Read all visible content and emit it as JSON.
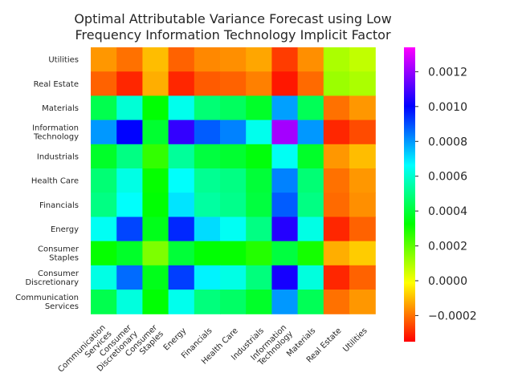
{
  "chart_data": {
    "type": "heatmap",
    "title": "Optimal Attributable Variance Forecast using Low Frequency Information Technology Implicit Factor",
    "title_lines": [
      "Optimal Attributable Variance Forecast using Low",
      "Frequency Information Technology Implicit Factor"
    ],
    "row_labels": [
      "Utilities",
      "Real Estate",
      "Materials",
      "Information Technology",
      "Industrials",
      "Health Care",
      "Financials",
      "Energy",
      "Consumer Staples",
      "Consumer Discretionary",
      "Communication Services"
    ],
    "row_label_lines": [
      [
        "Utilities"
      ],
      [
        "Real Estate"
      ],
      [
        "Materials"
      ],
      [
        "Information",
        "Technology"
      ],
      [
        "Industrials"
      ],
      [
        "Health Care"
      ],
      [
        "Financials"
      ],
      [
        "Energy"
      ],
      [
        "Consumer",
        "Staples"
      ],
      [
        "Consumer",
        "Discretionary"
      ],
      [
        "Communication",
        "Services"
      ]
    ],
    "col_labels": [
      "Communication Services",
      "Consumer Discretionary",
      "Consumer Staples",
      "Energy",
      "Financials",
      "Health Care",
      "Industrials",
      "Information Technology",
      "Materials",
      "Real Estate",
      "Utilities"
    ],
    "col_label_lines": [
      [
        "Communication",
        "Services"
      ],
      [
        "Consumer",
        "Discretionary"
      ],
      [
        "Consumer",
        "Staples"
      ],
      [
        "Energy"
      ],
      [
        "Financials"
      ],
      [
        "Health Care"
      ],
      [
        "Industrials"
      ],
      [
        "Information",
        "Technology"
      ],
      [
        "Materials"
      ],
      [
        "Real Estate"
      ],
      [
        "Utilities"
      ]
    ],
    "values": [
      [
        -0.00015,
        -0.0002,
        -0.0001,
        -0.00022,
        -0.00017,
        -0.00016,
        -0.00013,
        -0.00027,
        -0.00016,
        0.0001,
        7e-05
      ],
      [
        -0.00022,
        -0.0003,
        -0.00012,
        -0.0003,
        -0.00023,
        -0.00022,
        -0.00018,
        -0.00032,
        -0.00021,
        0.00012,
        0.0001
      ],
      [
        0.00043,
        0.00061,
        0.00033,
        0.00064,
        0.00048,
        0.00045,
        0.00038,
        0.00079,
        0.00044,
        -0.0002,
        -0.00015
      ],
      [
        0.0008,
        0.001,
        0.00039,
        0.00107,
        0.00088,
        0.00083,
        0.00064,
        0.00122,
        0.0008,
        -0.0003,
        -0.00025
      ],
      [
        0.00038,
        0.0005,
        0.00026,
        0.00053,
        0.00041,
        0.00039,
        0.00034,
        0.00065,
        0.00038,
        -0.00015,
        -0.0001
      ],
      [
        0.00048,
        0.00063,
        0.00032,
        0.00066,
        0.00052,
        0.0005,
        0.0004,
        0.00083,
        0.00048,
        -0.0002,
        -0.00015
      ],
      [
        0.0005,
        0.00066,
        0.00033,
        0.0007,
        0.00054,
        0.00051,
        0.00041,
        0.00088,
        0.0005,
        -0.00021,
        -0.00016
      ],
      [
        0.00065,
        0.00091,
        0.00036,
        0.00095,
        0.00071,
        0.00065,
        0.0005,
        0.00105,
        0.00063,
        -0.0003,
        -0.00022
      ],
      [
        0.00032,
        0.00038,
        0.00016,
        0.0004,
        0.00033,
        0.00032,
        0.00028,
        0.00041,
        0.0003,
        -0.00012,
        -8e-05
      ],
      [
        0.00063,
        0.00086,
        0.00036,
        0.00092,
        0.00068,
        0.00063,
        0.00049,
        0.00103,
        0.00062,
        -0.0003,
        -0.00022
      ],
      [
        0.00043,
        0.00062,
        0.00033,
        0.00064,
        0.00049,
        0.00046,
        0.00038,
        0.0008,
        0.00044,
        -0.0002,
        -0.00015
      ]
    ],
    "colorbar": {
      "vmin": -0.00035,
      "vmax": 0.00134,
      "ticks": [
        -0.0002,
        0.0,
        0.0002,
        0.0004,
        0.0006,
        0.0008,
        0.001,
        0.0012
      ],
      "tick_labels": [
        "−0.0002",
        "0.0000",
        "0.0002",
        "0.0004",
        "0.0006",
        "0.0008",
        "0.0010",
        "0.0012"
      ],
      "colormap": "gist_rainbow_r"
    },
    "grid": false
  }
}
